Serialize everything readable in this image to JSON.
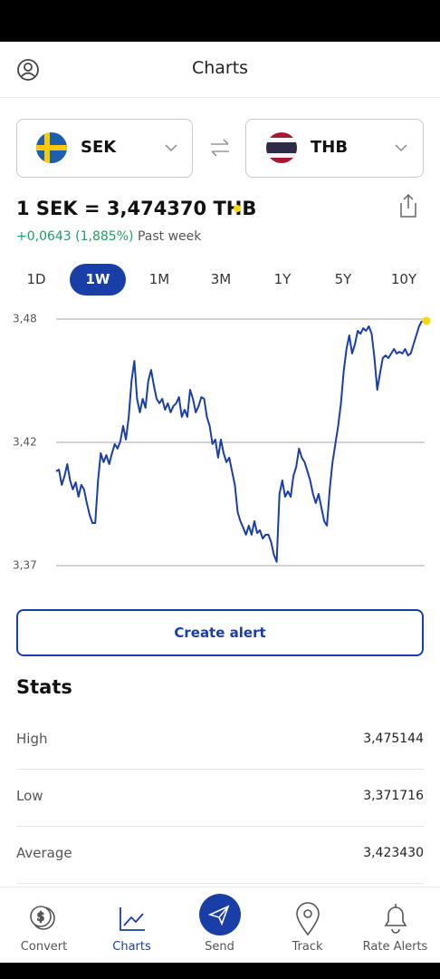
{
  "header": {
    "title": "Charts"
  },
  "pair": {
    "from": "SEK",
    "to": "THB"
  },
  "rate": {
    "text": "1 SEK = 3,474370 THB",
    "change": "+0,0643 (1,885%)",
    "period": "Past week"
  },
  "tabs": {
    "items": [
      "1D",
      "1W",
      "1M",
      "3M",
      "1Y",
      "5Y",
      "10Y"
    ],
    "selected": 1
  },
  "chart_data": {
    "type": "line",
    "ylim": [
      3.371716,
      3.475144
    ],
    "yticks": [
      {
        "value": 3.475144,
        "label": "3,48"
      },
      {
        "value": 3.42343,
        "label": "3,42"
      },
      {
        "value": 3.371716,
        "label": "3,37"
      }
    ],
    "grid": true,
    "series": [
      {
        "color": "#1a3ea8",
        "values": [
          3.4113,
          3.412,
          3.4056,
          3.4094,
          3.4143,
          3.4075,
          3.4037,
          3.4067,
          3.4006,
          3.4056,
          3.4037,
          3.398,
          3.393,
          3.3896,
          3.3896,
          3.4075,
          3.4189,
          3.4151,
          3.4181,
          3.4143,
          3.4189,
          3.4227,
          3.4208,
          3.4238,
          3.4303,
          3.4246,
          3.4341,
          3.4493,
          3.4576,
          3.4417,
          3.436,
          3.4417,
          3.4379,
          3.4493,
          3.4538,
          3.4474,
          3.4417,
          3.4398,
          3.4417,
          3.4371,
          3.4398,
          3.436,
          3.4386,
          3.4398,
          3.4424,
          3.4341,
          3.4371,
          3.4341,
          3.4455,
          3.4417,
          3.436,
          3.4386,
          3.4424,
          3.4417,
          3.4341,
          3.4303,
          3.4227,
          3.4246,
          3.417,
          3.4246,
          3.4189,
          3.4151,
          3.417,
          3.4113,
          3.4056,
          3.3942,
          3.3904,
          3.3877,
          3.3847,
          3.3885,
          3.3847,
          3.3904,
          3.3854,
          3.3866,
          3.3831,
          3.3847,
          3.3847,
          3.3816,
          3.3763,
          3.3733,
          3.4018,
          3.4075,
          3.4006,
          3.4029,
          3.4006,
          3.4094,
          3.4132,
          3.4208,
          3.417,
          3.4151,
          3.4113,
          3.4075,
          3.4018,
          3.398,
          3.4018,
          3.3961,
          3.3904,
          3.3885,
          3.4037,
          3.4151,
          3.4227,
          3.4303,
          3.4398,
          3.4531,
          3.4626,
          3.4683,
          3.4607,
          3.4645,
          3.4702,
          3.469,
          3.4713,
          3.4702,
          3.4721,
          3.469,
          3.4588,
          3.4455,
          3.4523,
          3.4588,
          3.4599,
          3.4588,
          3.4607,
          3.4626,
          3.4607,
          3.4614,
          3.4607,
          3.4626,
          3.4599,
          3.4607,
          3.4645,
          3.4683,
          3.4721,
          3.4744
        ]
      }
    ],
    "marker_color": "#ffd60a"
  },
  "button": "Create alert",
  "stats": {
    "title": "Stats",
    "rows": [
      [
        "High",
        "3,475144"
      ],
      [
        "Low",
        "3,371716"
      ],
      [
        "Average",
        "3,423430"
      ]
    ]
  },
  "nav": {
    "items": [
      "Convert",
      "Charts",
      "Send",
      "Track",
      "Rate Alerts"
    ],
    "selected": 1
  }
}
